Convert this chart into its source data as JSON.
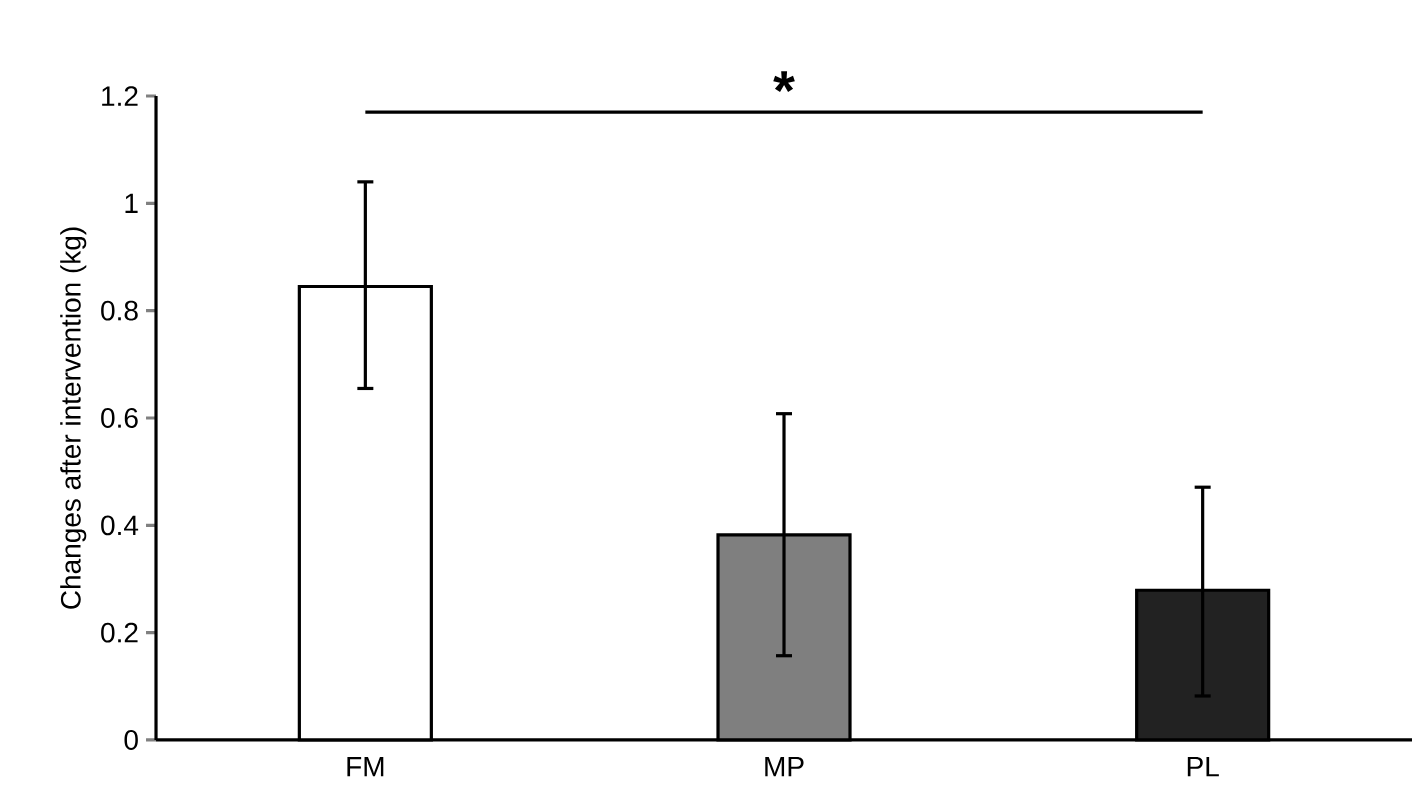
{
  "chart_data": {
    "type": "bar",
    "ylabel": "Changes after intervention (kg)",
    "categories": [
      "FM",
      "MP",
      "PL"
    ],
    "values": [
      0.845,
      0.382,
      0.279
    ],
    "errors": [
      [
        0.655,
        1.04
      ],
      [
        0.157,
        0.608
      ],
      [
        0.082,
        0.471
      ]
    ],
    "colors": [
      "#ffffff",
      "#7f7f7f",
      "#222222"
    ],
    "ylim": [
      0,
      1.2
    ],
    "yticks": [
      0,
      0.2,
      0.4,
      0.6,
      0.8,
      1,
      1.2
    ],
    "annotations": [
      "*"
    ]
  }
}
